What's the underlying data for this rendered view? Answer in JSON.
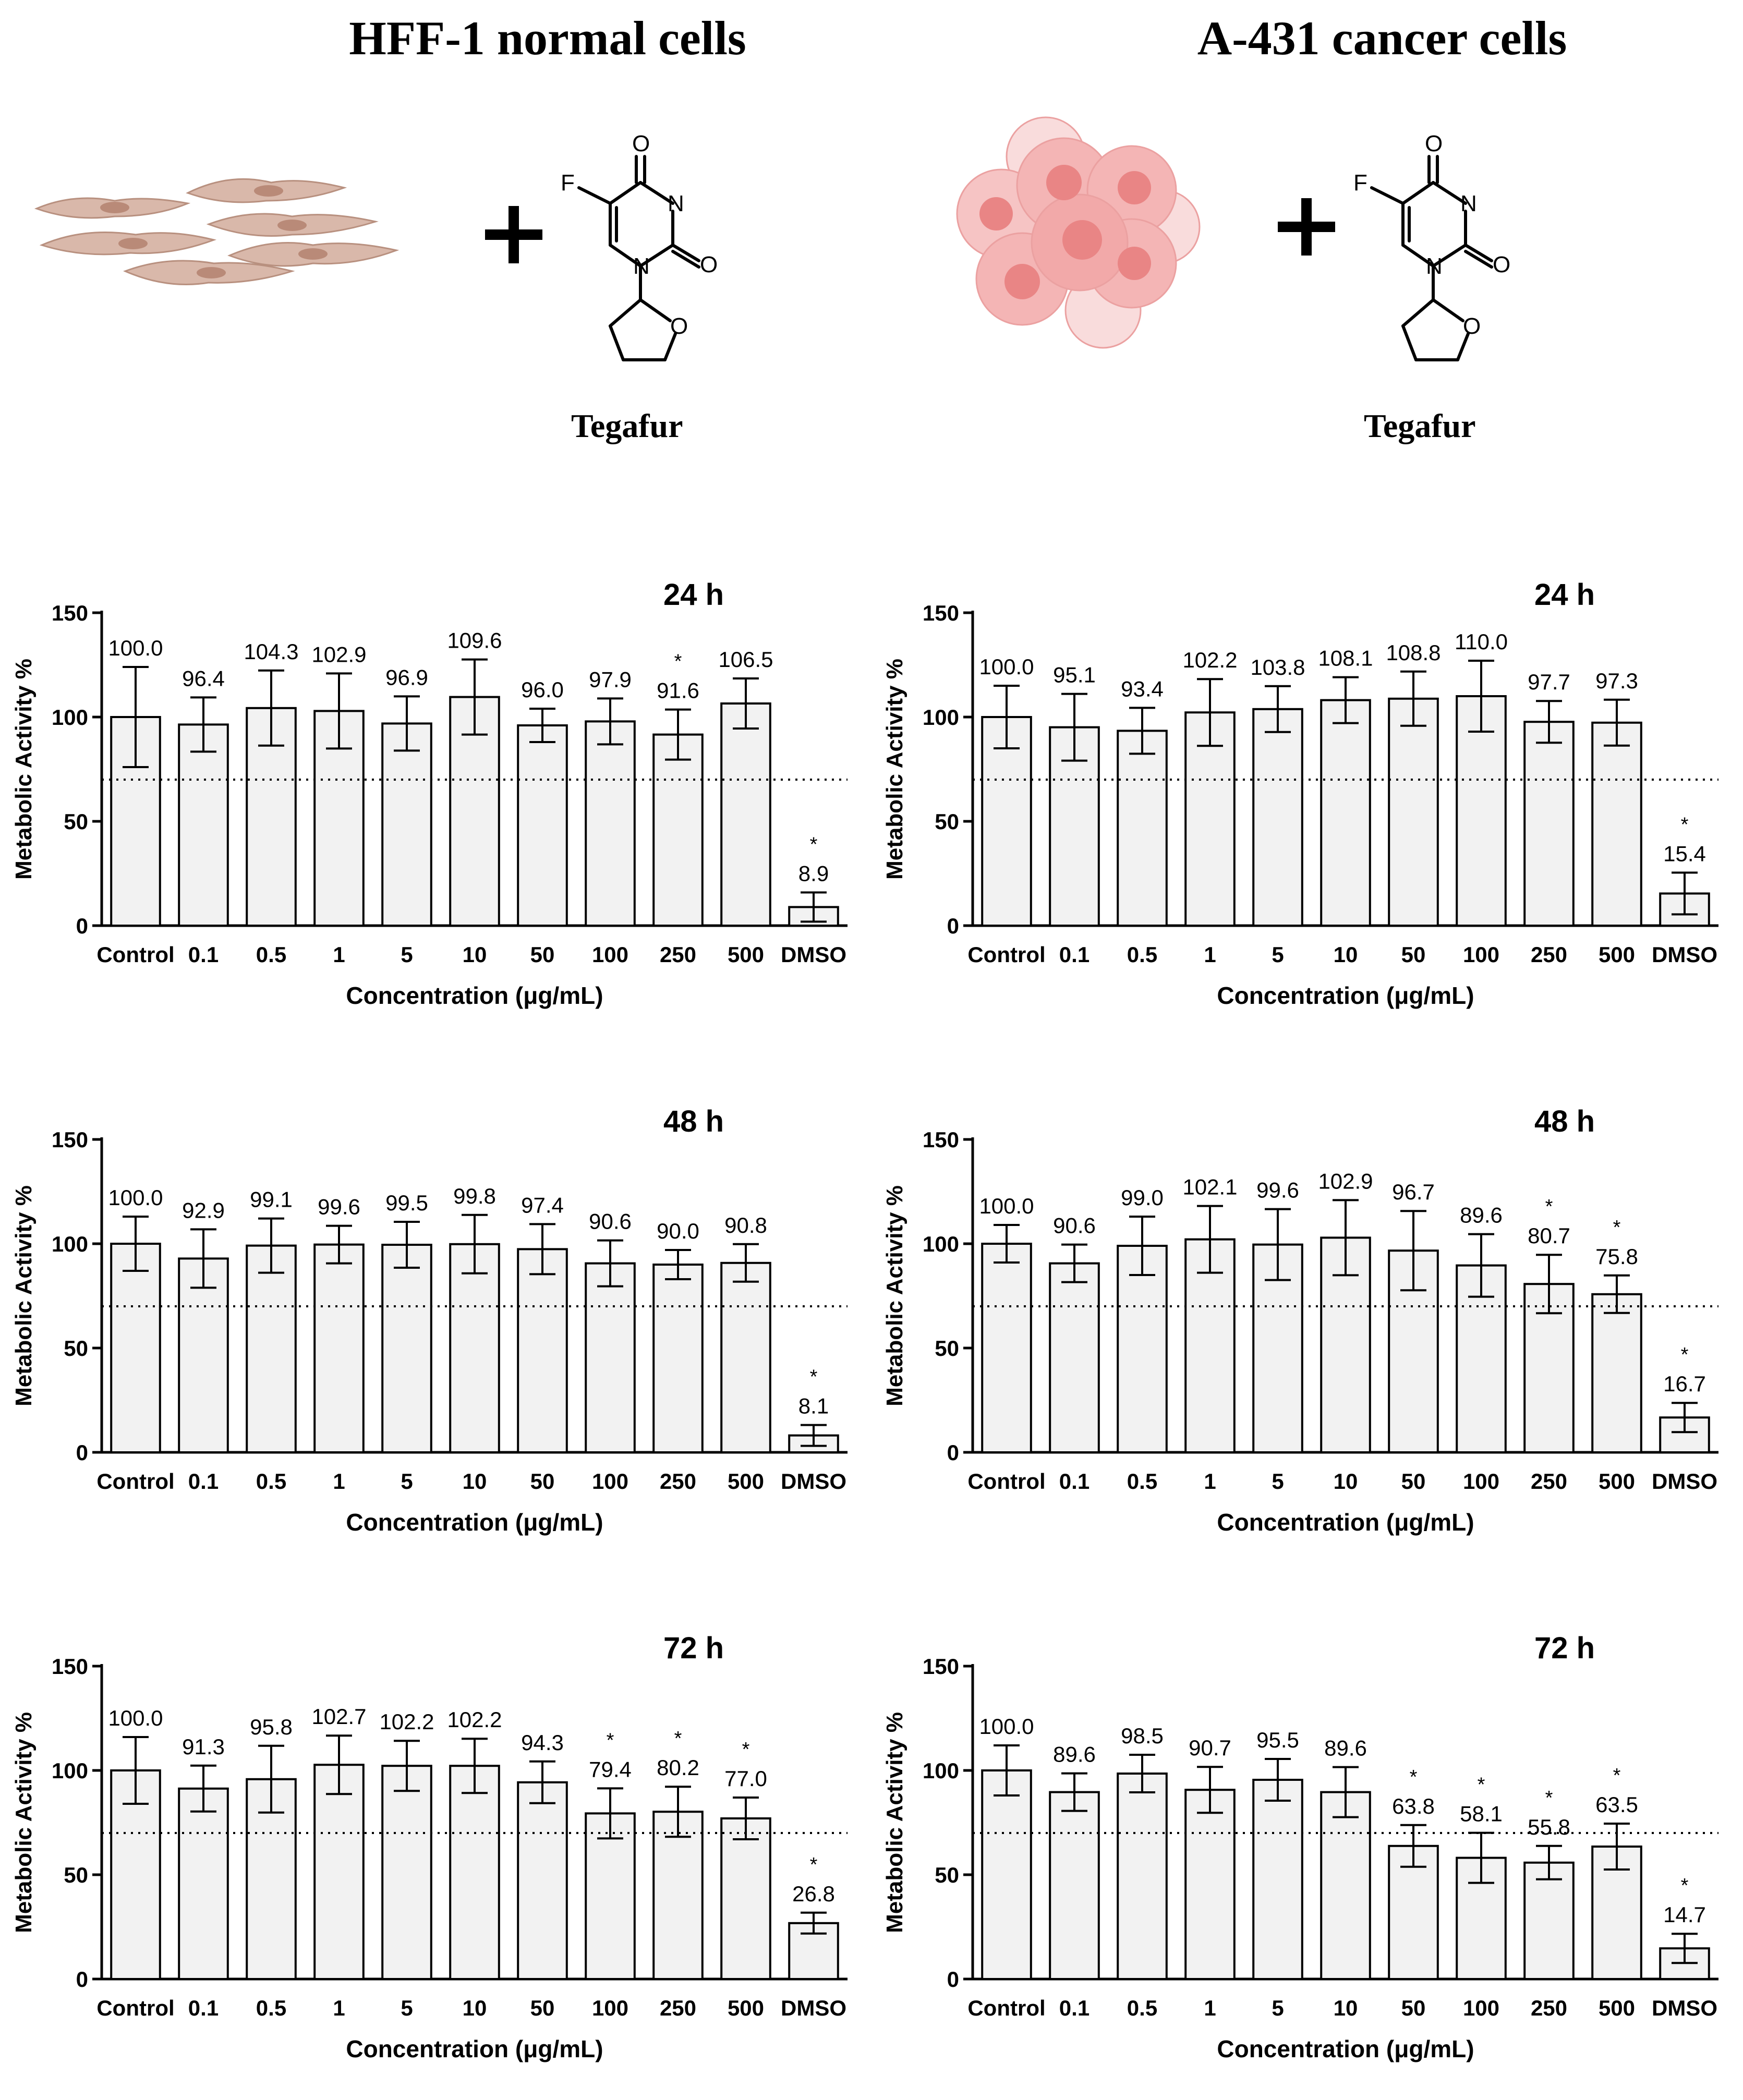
{
  "columns": [
    {
      "title": "HFF-1 normal cells",
      "drug_label": "Tegafur",
      "cells_icon": "fibroblast-cells-illustration",
      "structure_icon": "tegafur-structure"
    },
    {
      "title": "A-431 cancer cells",
      "drug_label": "Tegafur",
      "cells_icon": "cancer-cell-cluster-illustration",
      "structure_icon": "tegafur-structure"
    }
  ],
  "molecule": {
    "atom_o_top": "O",
    "atom_o_right": "O",
    "atom_o_ring": "O",
    "atom_n3": "N",
    "atom_n1": "N",
    "atom_f": "F",
    "plus": "+"
  },
  "chart_data": [
    {
      "id": "hff-24",
      "type": "bar",
      "title": "24 h",
      "xlabel": "Concentration (μg/mL)",
      "ylabel": "Metabolic Activity %",
      "ylim": [
        0,
        150
      ],
      "yticks": [
        0,
        50,
        100,
        150
      ],
      "threshold": 70,
      "categories": [
        "Control",
        "0.1",
        "0.5",
        "1",
        "5",
        "10",
        "50",
        "100",
        "250",
        "500",
        "DMSO"
      ],
      "values": [
        100.0,
        96.4,
        104.3,
        102.9,
        96.9,
        109.6,
        96.0,
        97.9,
        91.6,
        106.5,
        8.9
      ],
      "labels": [
        "100.0",
        "96.4",
        "104.3",
        "102.9",
        "96.9",
        "109.6",
        "96.0",
        "97.9",
        "91.6",
        "106.5",
        "8.9"
      ],
      "errors": [
        24,
        13,
        18,
        18,
        13,
        18,
        8,
        11,
        12,
        12,
        7
      ],
      "significant": [
        false,
        false,
        false,
        false,
        false,
        false,
        false,
        false,
        true,
        false,
        true
      ]
    },
    {
      "id": "a431-24",
      "type": "bar",
      "title": "24 h",
      "xlabel": "Concentration (μg/mL)",
      "ylabel": "Metabolic Activity %",
      "ylim": [
        0,
        150
      ],
      "yticks": [
        0,
        50,
        100,
        150
      ],
      "threshold": 70,
      "categories": [
        "Control",
        "0.1",
        "0.5",
        "1",
        "5",
        "10",
        "50",
        "100",
        "250",
        "500",
        "DMSO"
      ],
      "values": [
        100.0,
        95.1,
        93.4,
        102.2,
        103.8,
        108.1,
        108.8,
        110.0,
        97.7,
        97.3,
        15.4
      ],
      "labels": [
        "100.0",
        "95.1",
        "93.4",
        "102.2",
        "103.8",
        "108.1",
        "108.8",
        "110.0",
        "97.7",
        "97.3",
        "15.4"
      ],
      "errors": [
        15,
        16,
        11,
        16,
        11,
        11,
        13,
        17,
        10,
        11,
        10
      ],
      "significant": [
        false,
        false,
        false,
        false,
        false,
        false,
        false,
        false,
        false,
        false,
        true
      ]
    },
    {
      "id": "hff-48",
      "type": "bar",
      "title": "48 h",
      "xlabel": "Concentration (μg/mL)",
      "ylabel": "Metabolic Activity %",
      "ylim": [
        0,
        150
      ],
      "yticks": [
        0,
        50,
        100,
        150
      ],
      "threshold": 70,
      "categories": [
        "Control",
        "0.1",
        "0.5",
        "1",
        "5",
        "10",
        "50",
        "100",
        "250",
        "500",
        "DMSO"
      ],
      "values": [
        100.0,
        92.9,
        99.1,
        99.6,
        99.5,
        99.8,
        97.4,
        90.6,
        90.0,
        90.8,
        8.1
      ],
      "labels": [
        "100.0",
        "92.9",
        "99.1",
        "99.6",
        "99.5",
        "99.8",
        "97.4",
        "90.6",
        "90.0",
        "90.8",
        "8.1"
      ],
      "errors": [
        13,
        14,
        13,
        9,
        11,
        14,
        12,
        11,
        7,
        9,
        5
      ],
      "significant": [
        false,
        false,
        false,
        false,
        false,
        false,
        false,
        false,
        false,
        false,
        true
      ]
    },
    {
      "id": "a431-48",
      "type": "bar",
      "title": "48 h",
      "xlabel": "Concentration (μg/mL)",
      "ylabel": "Metabolic Activity %",
      "ylim": [
        0,
        150
      ],
      "yticks": [
        0,
        50,
        100,
        150
      ],
      "threshold": 70,
      "categories": [
        "Control",
        "0.1",
        "0.5",
        "1",
        "5",
        "10",
        "50",
        "100",
        "250",
        "500",
        "DMSO"
      ],
      "values": [
        100.0,
        90.6,
        99.0,
        102.1,
        99.6,
        102.9,
        96.7,
        89.6,
        80.7,
        75.8,
        16.7
      ],
      "labels": [
        "100.0",
        "90.6",
        "99.0",
        "102.1",
        "99.6",
        "102.9",
        "96.7",
        "89.6",
        "80.7",
        "75.8",
        "16.7"
      ],
      "errors": [
        9,
        9,
        14,
        16,
        17,
        18,
        19,
        15,
        14,
        9,
        7
      ],
      "significant": [
        false,
        false,
        false,
        false,
        false,
        false,
        false,
        false,
        true,
        true,
        true
      ]
    },
    {
      "id": "hff-72",
      "type": "bar",
      "title": "72 h",
      "xlabel": "Concentration (μg/mL)",
      "ylabel": "Metabolic Activity %",
      "ylim": [
        0,
        150
      ],
      "yticks": [
        0,
        50,
        100,
        150
      ],
      "threshold": 70,
      "categories": [
        "Control",
        "0.1",
        "0.5",
        "1",
        "5",
        "10",
        "50",
        "100",
        "250",
        "500",
        "DMSO"
      ],
      "values": [
        100.0,
        91.3,
        95.8,
        102.7,
        102.2,
        102.2,
        94.3,
        79.4,
        80.2,
        77.0,
        26.8
      ],
      "labels": [
        "100.0",
        "91.3",
        "95.8",
        "102.7",
        "102.2",
        "102.2",
        "94.3",
        "79.4",
        "80.2",
        "77.0",
        "26.8"
      ],
      "errors": [
        16,
        11,
        16,
        14,
        12,
        13,
        10,
        12,
        12,
        10,
        5
      ],
      "significant": [
        false,
        false,
        false,
        false,
        false,
        false,
        false,
        true,
        true,
        true,
        true
      ]
    },
    {
      "id": "a431-72",
      "type": "bar",
      "title": "72 h",
      "xlabel": "Concentration (μg/mL)",
      "ylabel": "Metabolic Activity %",
      "ylim": [
        0,
        150
      ],
      "yticks": [
        0,
        50,
        100,
        150
      ],
      "threshold": 70,
      "categories": [
        "Control",
        "0.1",
        "0.5",
        "1",
        "5",
        "10",
        "50",
        "100",
        "250",
        "500",
        "DMSO"
      ],
      "values": [
        100.0,
        89.6,
        98.5,
        90.7,
        95.5,
        89.6,
        63.8,
        58.1,
        55.8,
        63.5,
        14.7
      ],
      "labels": [
        "100.0",
        "89.6",
        "98.5",
        "90.7",
        "95.5",
        "89.6",
        "63.8",
        "58.1",
        "55.8",
        "63.5",
        "14.7"
      ],
      "errors": [
        12,
        9,
        9,
        11,
        10,
        12,
        10,
        12,
        8,
        11,
        7
      ],
      "significant": [
        false,
        false,
        false,
        false,
        false,
        false,
        true,
        true,
        true,
        true,
        true
      ]
    }
  ]
}
